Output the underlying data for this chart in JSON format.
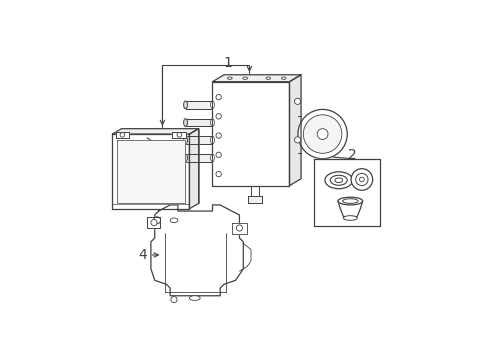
{
  "bg_color": "#ffffff",
  "lc": "#404040",
  "lc_thin": "#606060",
  "fig_width": 4.89,
  "fig_height": 3.6,
  "dpi": 100,
  "lw_main": 0.9,
  "lw_thin": 0.6,
  "label_fs": 10
}
